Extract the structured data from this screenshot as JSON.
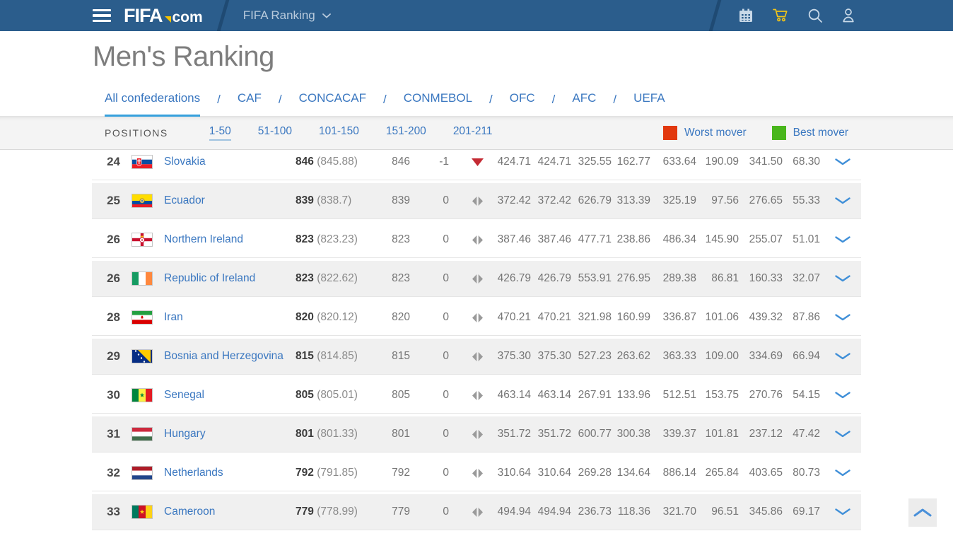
{
  "header": {
    "logo_fifa": "FIFA",
    "logo_com": "com",
    "breadcrumb": "FIFA Ranking",
    "icons": [
      "calendar-icon",
      "cart-icon",
      "search-icon",
      "user-icon"
    ]
  },
  "page": {
    "title": "Men's Ranking"
  },
  "tabs_separator": "/",
  "tabs": [
    {
      "label": "All confederations",
      "active": true
    },
    {
      "label": "CAF",
      "active": false
    },
    {
      "label": "CONCACAF",
      "active": false
    },
    {
      "label": "CONMEBOL",
      "active": false
    },
    {
      "label": "OFC",
      "active": false
    },
    {
      "label": "AFC",
      "active": false
    },
    {
      "label": "UEFA",
      "active": false
    }
  ],
  "positions_bar": {
    "label": "POSITIONS",
    "ranges": [
      {
        "label": "1-50",
        "active": true
      },
      {
        "label": "51-100",
        "active": false
      },
      {
        "label": "101-150",
        "active": false
      },
      {
        "label": "151-200",
        "active": false
      },
      {
        "label": "201-211",
        "active": false
      }
    ],
    "legend": [
      {
        "label": "Worst mover",
        "color": "#e2380e"
      },
      {
        "label": "Best mover",
        "color": "#49b61c"
      }
    ]
  },
  "colors": {
    "topbar": "#2b5d8c",
    "link_blue": "#3a77c0",
    "tab_underline": "#36a0dc",
    "mover_down_red": "#c42a33",
    "cart_yellow": "#f0c419"
  },
  "table": {
    "rows": [
      {
        "rank": "24",
        "country": "Slovakia",
        "flag": "svk",
        "points": "846",
        "points_exact": "(845.88)",
        "prev_points": "846",
        "change": "-1",
        "movement": "down",
        "values": [
          "424.71",
          "424.71",
          "325.55",
          "162.77",
          "633.64",
          "190.09",
          "341.50",
          "68.30"
        ]
      },
      {
        "rank": "25",
        "country": "Ecuador",
        "flag": "ecu",
        "points": "839",
        "points_exact": "(838.7)",
        "prev_points": "839",
        "change": "0",
        "movement": "steady",
        "values": [
          "372.42",
          "372.42",
          "626.79",
          "313.39",
          "325.19",
          "97.56",
          "276.65",
          "55.33"
        ]
      },
      {
        "rank": "26",
        "country": "Northern Ireland",
        "flag": "nir",
        "points": "823",
        "points_exact": "(823.23)",
        "prev_points": "823",
        "change": "0",
        "movement": "steady",
        "values": [
          "387.46",
          "387.46",
          "477.71",
          "238.86",
          "486.34",
          "145.90",
          "255.07",
          "51.01"
        ]
      },
      {
        "rank": "26",
        "country": "Republic of Ireland",
        "flag": "irl",
        "points": "823",
        "points_exact": "(822.62)",
        "prev_points": "823",
        "change": "0",
        "movement": "steady",
        "values": [
          "426.79",
          "426.79",
          "553.91",
          "276.95",
          "289.38",
          "86.81",
          "160.33",
          "32.07"
        ]
      },
      {
        "rank": "28",
        "country": "Iran",
        "flag": "irn",
        "points": "820",
        "points_exact": "(820.12)",
        "prev_points": "820",
        "change": "0",
        "movement": "steady",
        "values": [
          "470.21",
          "470.21",
          "321.98",
          "160.99",
          "336.87",
          "101.06",
          "439.32",
          "87.86"
        ]
      },
      {
        "rank": "29",
        "country": "Bosnia and Herzegovina",
        "flag": "bih",
        "points": "815",
        "points_exact": "(814.85)",
        "prev_points": "815",
        "change": "0",
        "movement": "steady",
        "values": [
          "375.30",
          "375.30",
          "527.23",
          "263.62",
          "363.33",
          "109.00",
          "334.69",
          "66.94"
        ]
      },
      {
        "rank": "30",
        "country": "Senegal",
        "flag": "sen",
        "points": "805",
        "points_exact": "(805.01)",
        "prev_points": "805",
        "change": "0",
        "movement": "steady",
        "values": [
          "463.14",
          "463.14",
          "267.91",
          "133.96",
          "512.51",
          "153.75",
          "270.76",
          "54.15"
        ]
      },
      {
        "rank": "31",
        "country": "Hungary",
        "flag": "hun",
        "points": "801",
        "points_exact": "(801.33)",
        "prev_points": "801",
        "change": "0",
        "movement": "steady",
        "values": [
          "351.72",
          "351.72",
          "600.77",
          "300.38",
          "339.37",
          "101.81",
          "237.12",
          "47.42"
        ]
      },
      {
        "rank": "32",
        "country": "Netherlands",
        "flag": "ned",
        "points": "792",
        "points_exact": "(791.85)",
        "prev_points": "792",
        "change": "0",
        "movement": "steady",
        "values": [
          "310.64",
          "310.64",
          "269.28",
          "134.64",
          "886.14",
          "265.84",
          "403.65",
          "80.73"
        ]
      },
      {
        "rank": "33",
        "country": "Cameroon",
        "flag": "cmr",
        "points": "779",
        "points_exact": "(778.99)",
        "prev_points": "779",
        "change": "0",
        "movement": "steady",
        "values": [
          "494.94",
          "494.94",
          "236.73",
          "118.36",
          "321.70",
          "96.51",
          "345.86",
          "69.17"
        ]
      }
    ]
  }
}
